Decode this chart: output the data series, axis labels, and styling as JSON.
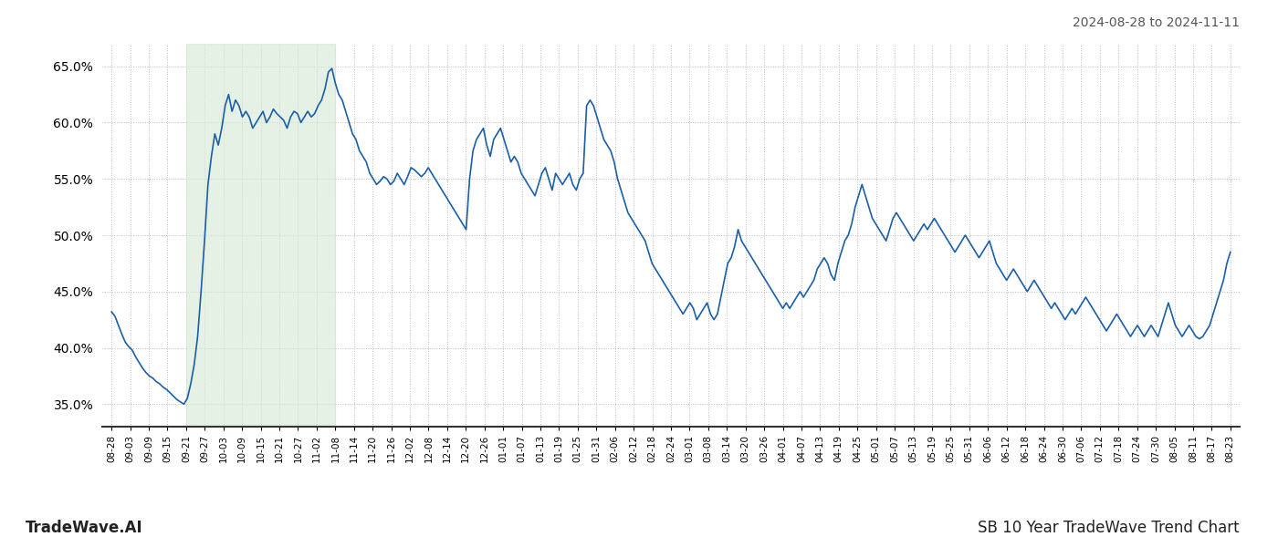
{
  "title_topright": "2024-08-28 to 2024-11-11",
  "title_bottomleft": "TradeWave.AI",
  "title_bottomright": "SB 10 Year TradeWave Trend Chart",
  "background_color": "#ffffff",
  "line_color": "#1a5fa8",
  "line_width": 1.2,
  "shade_color": "#d6ead6",
  "shade_alpha": 0.65,
  "ylim": [
    33.0,
    67.0
  ],
  "yticks": [
    35.0,
    40.0,
    45.0,
    50.0,
    55.0,
    60.0,
    65.0
  ],
  "grid_color": "#bbbbbb",
  "xlabel_fontsize": 7.5,
  "ylabel_fontsize": 10,
  "x_labels": [
    "08-28",
    "09-03",
    "09-09",
    "09-15",
    "09-21",
    "09-27",
    "10-03",
    "10-09",
    "10-15",
    "10-21",
    "10-27",
    "11-02",
    "11-08",
    "11-14",
    "11-20",
    "11-26",
    "12-02",
    "12-08",
    "12-14",
    "12-20",
    "12-26",
    "01-01",
    "01-07",
    "01-13",
    "01-19",
    "01-25",
    "01-31",
    "02-06",
    "02-12",
    "02-18",
    "02-24",
    "03-01",
    "03-08",
    "03-14",
    "03-20",
    "03-26",
    "04-01",
    "04-07",
    "04-13",
    "04-19",
    "04-25",
    "05-01",
    "05-07",
    "05-13",
    "05-19",
    "05-25",
    "05-31",
    "06-06",
    "06-12",
    "06-18",
    "06-24",
    "06-30",
    "07-06",
    "07-12",
    "07-18",
    "07-24",
    "07-30",
    "08-05",
    "08-11",
    "08-17",
    "08-23"
  ],
  "shade_xstart": 4,
  "shade_xend": 12,
  "values": [
    43.2,
    42.8,
    42.0,
    41.2,
    40.5,
    40.1,
    39.8,
    39.2,
    38.7,
    38.2,
    37.8,
    37.5,
    37.3,
    37.0,
    36.8,
    36.5,
    36.3,
    36.0,
    35.7,
    35.4,
    35.2,
    35.0,
    35.5,
    36.8,
    38.5,
    41.0,
    45.0,
    49.5,
    54.5,
    57.0,
    59.0,
    58.0,
    59.5,
    61.5,
    62.5,
    61.0,
    62.0,
    61.5,
    60.5,
    61.0,
    60.5,
    59.5,
    60.0,
    60.5,
    61.0,
    60.0,
    60.5,
    61.2,
    60.8,
    60.5,
    60.2,
    59.5,
    60.5,
    61.0,
    60.8,
    60.0,
    60.5,
    61.0,
    60.5,
    60.8,
    61.5,
    62.0,
    63.0,
    64.5,
    64.8,
    63.5,
    62.5,
    62.0,
    61.0,
    60.0,
    59.0,
    58.5,
    57.5,
    57.0,
    56.5,
    55.5,
    55.0,
    54.5,
    54.8,
    55.2,
    55.0,
    54.5,
    54.8,
    55.5,
    55.0,
    54.5,
    55.2,
    56.0,
    55.8,
    55.5,
    55.2,
    55.5,
    56.0,
    55.5,
    55.0,
    54.5,
    54.0,
    53.5,
    53.0,
    52.5,
    52.0,
    51.5,
    51.0,
    50.5,
    55.0,
    57.5,
    58.5,
    59.0,
    59.5,
    58.0,
    57.0,
    58.5,
    59.0,
    59.5,
    58.5,
    57.5,
    56.5,
    57.0,
    56.5,
    55.5,
    55.0,
    54.5,
    54.0,
    53.5,
    54.5,
    55.5,
    56.0,
    55.0,
    54.0,
    55.5,
    55.0,
    54.5,
    55.0,
    55.5,
    54.5,
    54.0,
    55.0,
    55.5,
    61.5,
    62.0,
    61.5,
    60.5,
    59.5,
    58.5,
    58.0,
    57.5,
    56.5,
    55.0,
    54.0,
    53.0,
    52.0,
    51.5,
    51.0,
    50.5,
    50.0,
    49.5,
    48.5,
    47.5,
    47.0,
    46.5,
    46.0,
    45.5,
    45.0,
    44.5,
    44.0,
    43.5,
    43.0,
    43.5,
    44.0,
    43.5,
    42.5,
    43.0,
    43.5,
    44.0,
    43.0,
    42.5,
    43.0,
    44.5,
    46.0,
    47.5,
    48.0,
    49.0,
    50.5,
    49.5,
    49.0,
    48.5,
    48.0,
    47.5,
    47.0,
    46.5,
    46.0,
    45.5,
    45.0,
    44.5,
    44.0,
    43.5,
    44.0,
    43.5,
    44.0,
    44.5,
    45.0,
    44.5,
    45.0,
    45.5,
    46.0,
    47.0,
    47.5,
    48.0,
    47.5,
    46.5,
    46.0,
    47.5,
    48.5,
    49.5,
    50.0,
    51.0,
    52.5,
    53.5,
    54.5,
    53.5,
    52.5,
    51.5,
    51.0,
    50.5,
    50.0,
    49.5,
    50.5,
    51.5,
    52.0,
    51.5,
    51.0,
    50.5,
    50.0,
    49.5,
    50.0,
    50.5,
    51.0,
    50.5,
    51.0,
    51.5,
    51.0,
    50.5,
    50.0,
    49.5,
    49.0,
    48.5,
    49.0,
    49.5,
    50.0,
    49.5,
    49.0,
    48.5,
    48.0,
    48.5,
    49.0,
    49.5,
    48.5,
    47.5,
    47.0,
    46.5,
    46.0,
    46.5,
    47.0,
    46.5,
    46.0,
    45.5,
    45.0,
    45.5,
    46.0,
    45.5,
    45.0,
    44.5,
    44.0,
    43.5,
    44.0,
    43.5,
    43.0,
    42.5,
    43.0,
    43.5,
    43.0,
    43.5,
    44.0,
    44.5,
    44.0,
    43.5,
    43.0,
    42.5,
    42.0,
    41.5,
    42.0,
    42.5,
    43.0,
    42.5,
    42.0,
    41.5,
    41.0,
    41.5,
    42.0,
    41.5,
    41.0,
    41.5,
    42.0,
    41.5,
    41.0,
    42.0,
    43.0,
    44.0,
    43.0,
    42.0,
    41.5,
    41.0,
    41.5,
    42.0,
    41.5,
    41.0,
    40.8,
    41.0,
    41.5,
    42.0,
    43.0,
    44.0,
    45.0,
    46.0,
    47.5,
    48.5
  ]
}
